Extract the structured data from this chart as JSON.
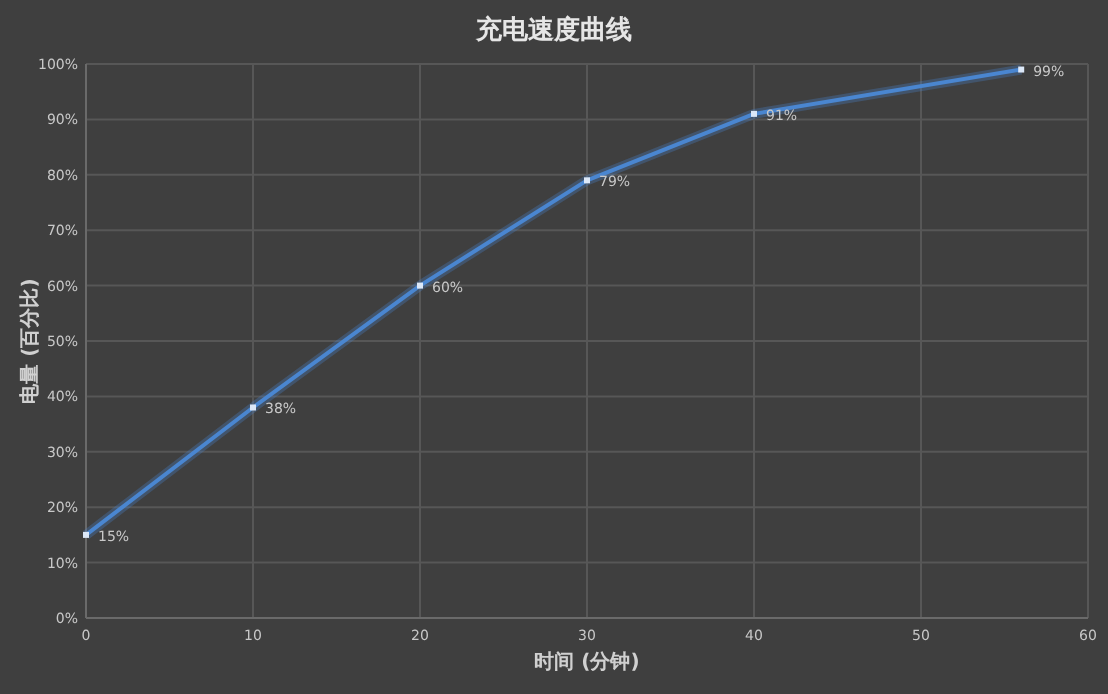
{
  "chart_data": {
    "type": "line",
    "title": "充电速度曲线",
    "xlabel": "时间 (分钟)",
    "ylabel": "电量 (百分比)",
    "x": [
      0,
      10,
      20,
      30,
      40,
      56
    ],
    "series": [
      {
        "color": "#4a86d0",
        "values": [
          15,
          38,
          60,
          79,
          91,
          99
        ],
        "value_labels": [
          "15%",
          "38%",
          "60%",
          "79%",
          "91%",
          "99%"
        ]
      }
    ],
    "xlim": [
      0,
      60
    ],
    "xticks": [
      0,
      10,
      20,
      30,
      40,
      50,
      60
    ],
    "ylim": [
      0,
      100
    ],
    "yticks": [
      {
        "value": 0,
        "label": "0%"
      },
      {
        "value": 10,
        "label": "10%"
      },
      {
        "value": 20,
        "label": "20%"
      },
      {
        "value": 30,
        "label": "30%"
      },
      {
        "value": 40,
        "label": "40%"
      },
      {
        "value": 50,
        "label": "50%"
      },
      {
        "value": 60,
        "label": "60%"
      },
      {
        "value": 70,
        "label": "70%"
      },
      {
        "value": 80,
        "label": "80%"
      },
      {
        "value": 90,
        "label": "90%"
      },
      {
        "value": 100,
        "label": "100%"
      }
    ],
    "grid": true,
    "marker": "square",
    "line_style": "solid"
  }
}
